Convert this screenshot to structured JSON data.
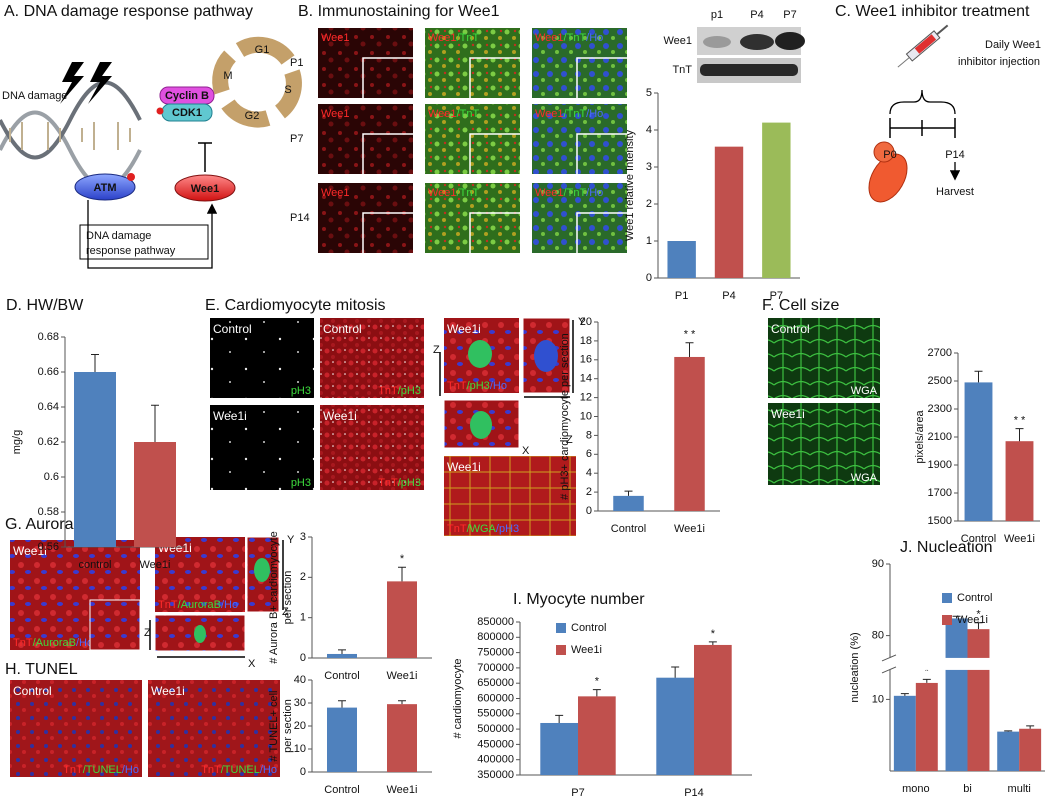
{
  "panel_a": {
    "title": "A. DNA damage response pathway",
    "dna_damage": "DNA damage",
    "atm": "ATM",
    "wee1": "Wee1",
    "cyclin_b": "Cyclin B",
    "cdk1": "CDK1",
    "phases": [
      "G1",
      "S",
      "G2",
      "M"
    ],
    "pathway": [
      "DNA damage",
      "response pathway"
    ]
  },
  "panel_b": {
    "title": "B. Immunostaining for Wee1",
    "rows": [
      "P1",
      "P7",
      "P14"
    ],
    "channels": [
      {
        "stain": [
          "Wee1"
        ],
        "stain_colors": [
          "#ff2a2a"
        ]
      },
      {
        "stain": [
          "Wee1",
          "/TnT"
        ],
        "stain_colors": [
          "#ff2a2a",
          "#3ddc3d"
        ]
      },
      {
        "stain": [
          "Wee1",
          "/TnT",
          "/Ho"
        ],
        "stain_colors": [
          "#ff2a2a",
          "#3ddc3d",
          "#4a6aff"
        ]
      }
    ],
    "blot": {
      "lanes": [
        "p1",
        "P4",
        "P7"
      ],
      "bands": [
        "Wee1",
        "TnT"
      ]
    }
  },
  "panel_c": {
    "title": "C. Wee1 inhibitor treatment",
    "injection": [
      "Daily Wee1",
      "inhibitor injection"
    ],
    "start": "P0",
    "end": "P14",
    "harvest": "Harvest"
  },
  "panel_d": {
    "title": "D. HW/BW"
  },
  "panel_e": {
    "title": "E. Cardiomyocyte mitosis",
    "axes": [
      "Y",
      "Z",
      "X"
    ],
    "images": [
      {
        "name": "Control",
        "stain": [
          "pH3"
        ],
        "stain_colors": [
          "#3ddc3d"
        ]
      },
      {
        "name": "Control",
        "stain": [
          "TnT",
          "/pH3"
        ],
        "stain_colors": [
          "#ff2a2a",
          "#3ddc3d"
        ]
      },
      {
        "name": "Wee1i",
        "stain": [
          "pH3"
        ],
        "stain_colors": [
          "#3ddc3d"
        ]
      },
      {
        "name": "Wee1i",
        "stain": [
          "TnT",
          "/pH3"
        ],
        "stain_colors": [
          "#ff2a2a",
          "#3ddc3d"
        ]
      },
      {
        "name": "Wee1i",
        "stain": [
          "TnT",
          "/pH3",
          "/Ho"
        ],
        "stain_colors": [
          "#ff2a2a",
          "#3ddc3d",
          "#4a6aff"
        ]
      },
      {
        "name": "Wee1i",
        "stain": [
          "TnT",
          "/WGA",
          "/pH3"
        ],
        "stain_colors": [
          "#ff2a2a",
          "#3ddc3d",
          "#4a6aff"
        ]
      }
    ]
  },
  "panel_f": {
    "title": "F. Cell size",
    "images": [
      {
        "name": "Control",
        "stain": [
          "WGA"
        ],
        "stain_colors": [
          "#ffffff"
        ]
      },
      {
        "name": "Wee1i",
        "stain": [
          "WGA"
        ],
        "stain_colors": [
          "#ffffff"
        ]
      }
    ]
  },
  "panel_g": {
    "title": "G. AuroraB",
    "axes": [
      "Y",
      "Z",
      "X"
    ],
    "images": [
      {
        "name": "Wee1i",
        "stain": [
          "TnT",
          "/AuroraB",
          "/Ho"
        ],
        "stain_colors": [
          "#ff2a2a",
          "#3ddc3d",
          "#4a6aff"
        ]
      },
      {
        "name": "Wee1i",
        "stain": [
          "TnT",
          "/AuroraB",
          "/Ho"
        ],
        "stain_colors": [
          "#ff2a2a",
          "#3ddc3d",
          "#4a6aff"
        ]
      }
    ]
  },
  "panel_h": {
    "title": "H. TUNEL",
    "images": [
      {
        "name": "Control",
        "stain": [
          "TnT",
          "/TUNEL",
          "/Ho"
        ],
        "stain_colors": [
          "#ff2a2a",
          "#3ddc3d",
          "#4a6aff"
        ]
      },
      {
        "name": "Wee1i",
        "stain": [
          "TnT",
          "/TUNEL",
          "/Ho"
        ],
        "stain_colors": [
          "#ff2a2a",
          "#3ddc3d",
          "#4a6aff"
        ]
      }
    ]
  },
  "panel_i": {
    "title": "I. Myocyte number"
  },
  "panel_j": {
    "title": "J. Nucleation"
  },
  "chart_data": [
    {
      "type": "bar",
      "categories": [
        "P1",
        "P4",
        "P7"
      ],
      "values": [
        1,
        3.55,
        4.2
      ],
      "colors": [
        "#4f81bd",
        "#c0504d",
        "#9bbb59"
      ],
      "ylim": [
        0,
        5
      ],
      "yticks": [
        0,
        1,
        2,
        3,
        4,
        5
      ],
      "ylabel": "Wee1 relative Intensity"
    },
    {
      "type": "bar",
      "categories": [
        "control",
        "Wee1i"
      ],
      "values": [
        0.66,
        0.62
      ],
      "errors": [
        0.01,
        0.021
      ],
      "colors": [
        "#4f81bd",
        "#c0504d"
      ],
      "ylim": [
        0.56,
        0.68
      ],
      "yticks": [
        0.56,
        0.58,
        0.6,
        0.62,
        0.64,
        0.66,
        0.68
      ],
      "ylabel": "mg/g"
    },
    {
      "type": "bar",
      "categories": [
        "Control",
        "Wee1i"
      ],
      "values": [
        1.6,
        16.3
      ],
      "errors": [
        0.5,
        1.5
      ],
      "significance": [
        null,
        "* *"
      ],
      "colors": [
        "#4f81bd",
        "#c0504d"
      ],
      "ylim": [
        0,
        20
      ],
      "yticks": [
        0,
        2,
        4,
        6,
        8,
        10,
        12,
        14,
        16,
        18,
        20
      ],
      "ylabel": "# pH3+ cardiomyocyte per section"
    },
    {
      "type": "bar",
      "categories": [
        "Control",
        "Wee1i"
      ],
      "values": [
        2490,
        2070
      ],
      "errors": [
        80,
        90
      ],
      "significance": [
        null,
        "* *"
      ],
      "colors": [
        "#4f81bd",
        "#c0504d"
      ],
      "ylim": [
        1500,
        2700
      ],
      "yticks": [
        1500,
        1700,
        1900,
        2100,
        2300,
        2500,
        2700
      ],
      "ylabel": "pixels/area"
    },
    {
      "type": "bar",
      "categories": [
        "Control",
        "Wee1i"
      ],
      "values": [
        0.1,
        1.9
      ],
      "errors": [
        0.1,
        0.35
      ],
      "significance": [
        null,
        "*"
      ],
      "colors": [
        "#4f81bd",
        "#c0504d"
      ],
      "ylim": [
        0,
        3
      ],
      "yticks": [
        0,
        1,
        2,
        3
      ],
      "ylabel": [
        "# Aurora B+ cardiomyocyte",
        "per section"
      ]
    },
    {
      "type": "bar",
      "categories": [
        "Control",
        "Wee1i"
      ],
      "values": [
        28,
        29.5
      ],
      "errors": [
        3,
        1.5
      ],
      "colors": [
        "#4f81bd",
        "#c0504d"
      ],
      "ylim": [
        0,
        40
      ],
      "yticks": [
        0,
        10,
        20,
        30,
        40
      ],
      "ylabel": [
        "# TUNEL+ cell",
        "per section"
      ]
    },
    {
      "type": "bar",
      "categories": [
        "P7",
        "P14"
      ],
      "series": [
        {
          "name": "Control",
          "color": "#4f81bd",
          "values": [
            520000,
            668000
          ],
          "errors": [
            25000,
            35000
          ]
        },
        {
          "name": "Wee1i",
          "color": "#c0504d",
          "values": [
            607000,
            775000
          ],
          "errors": [
            22000,
            10000
          ],
          "significance": [
            "*",
            "*"
          ]
        }
      ],
      "ylim": [
        350000,
        850000
      ],
      "yticks": [
        350000,
        400000,
        450000,
        500000,
        550000,
        600000,
        650000,
        700000,
        750000,
        800000,
        850000
      ],
      "ylabel": "# cardiomyocyte",
      "legend": "top-left"
    },
    {
      "type": "bar",
      "categories": [
        "mono",
        "bi",
        "multi"
      ],
      "series": [
        {
          "name": "Control",
          "color": "#4f81bd",
          "values": [
            10.5,
            82.4,
            5.5
          ],
          "errors": [
            0.3,
            0.3,
            0.1
          ]
        },
        {
          "name": "Wee1i",
          "color": "#c0504d",
          "values": [
            12.3,
            80.9,
            5.9
          ],
          "errors": [
            0.5,
            0.9,
            0.4
          ],
          "significance": [
            "*",
            "*",
            null
          ]
        }
      ],
      "ylim": [
        0,
        90
      ],
      "ybreak": [
        13,
        78
      ],
      "yticks": [
        10,
        80,
        90
      ],
      "ylabel": "nucleation (%)",
      "legend": "top-left"
    }
  ]
}
